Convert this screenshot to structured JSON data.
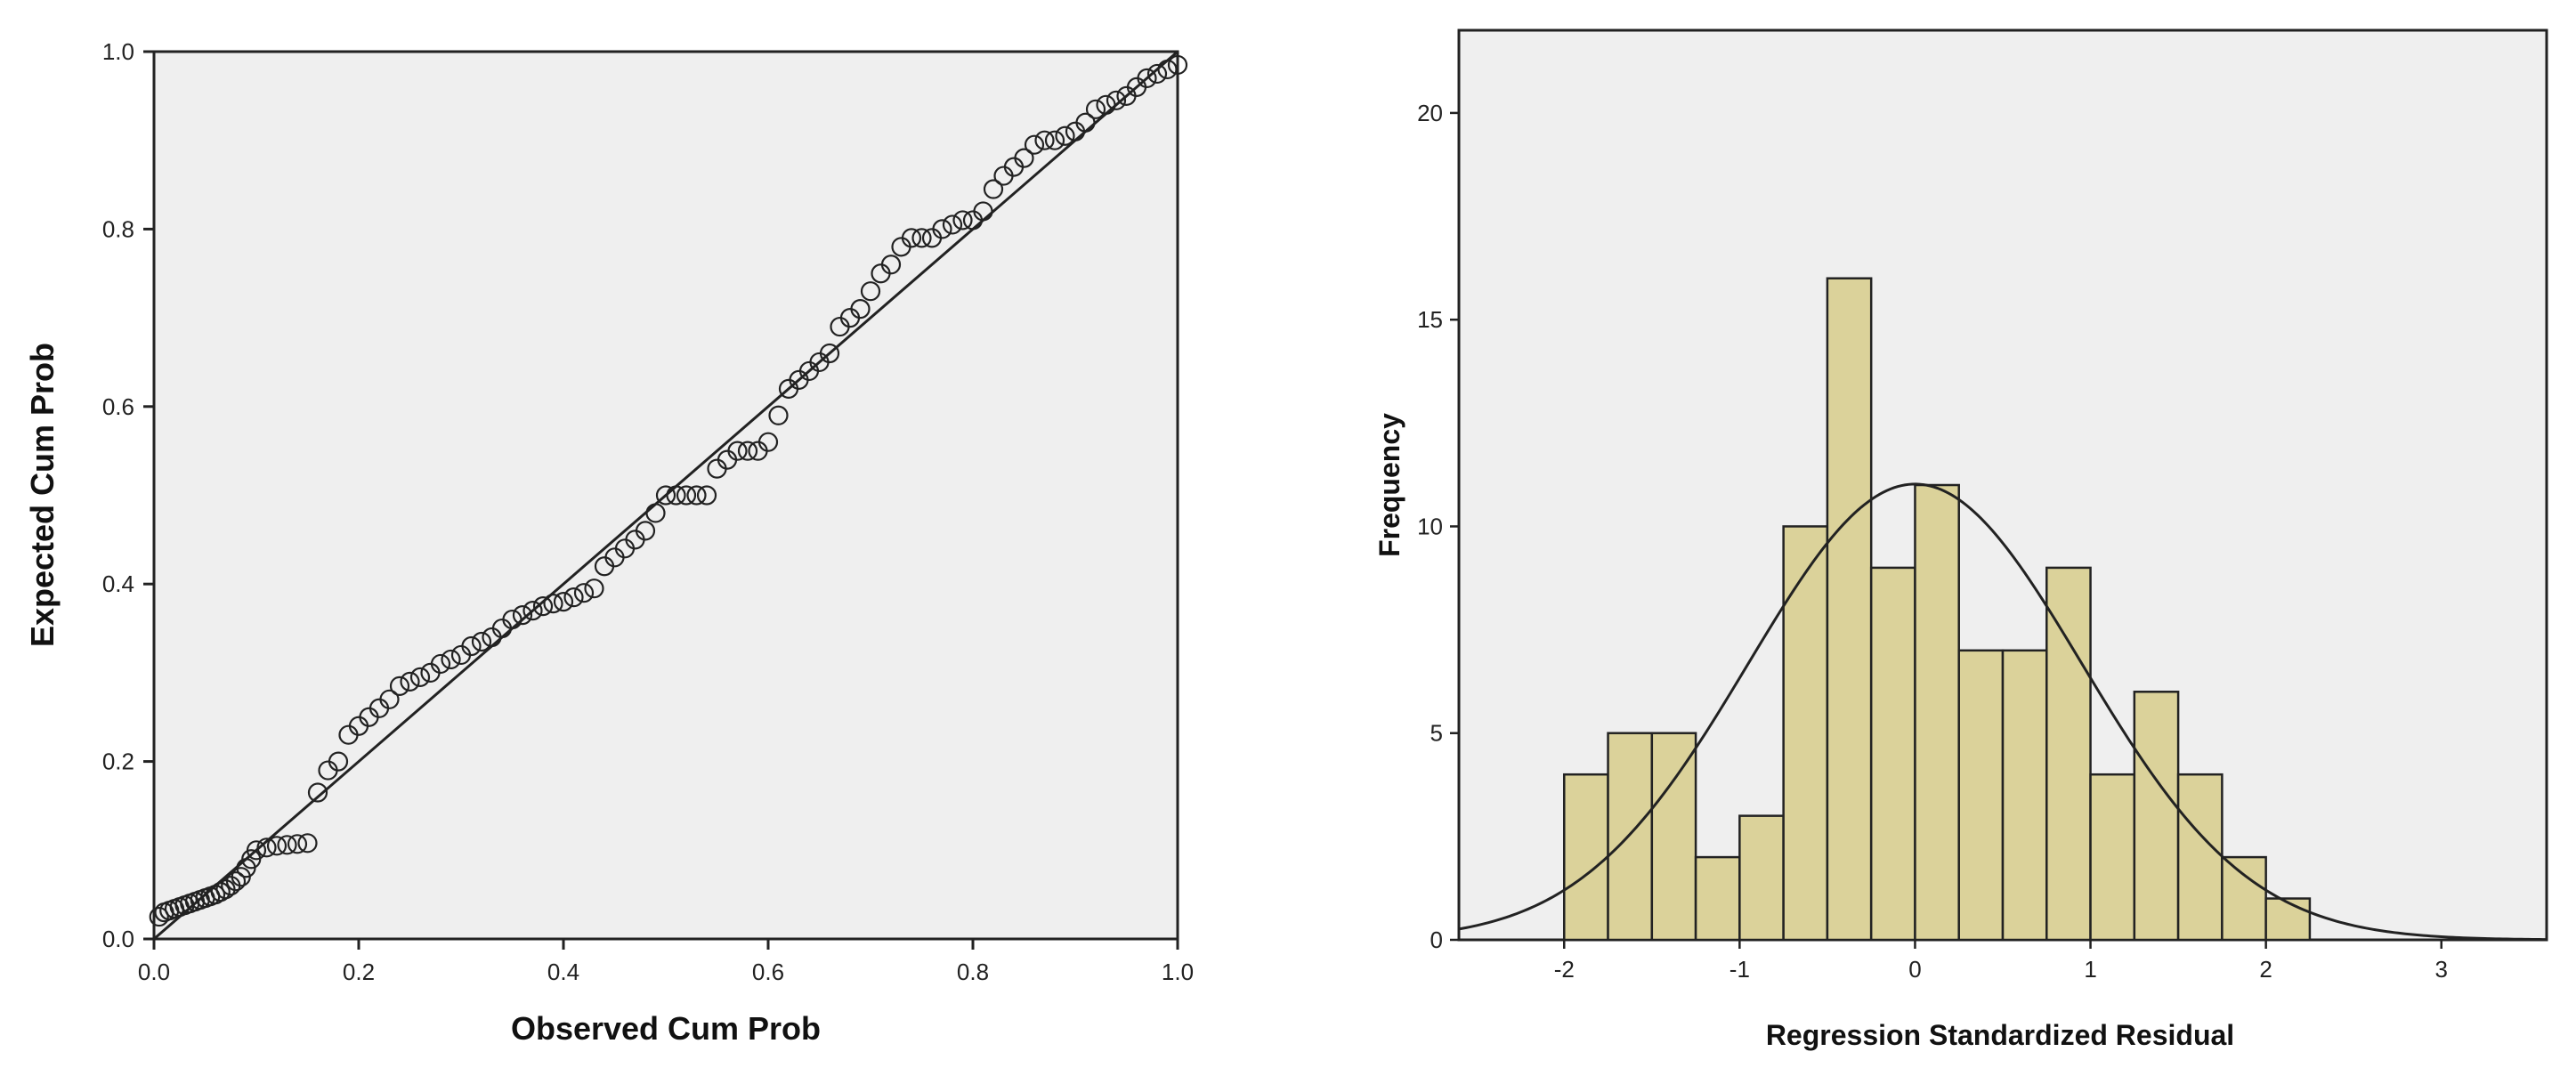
{
  "chart_data": [
    {
      "type": "scatter",
      "title": "",
      "xlabel": "Observed Cum Prob",
      "ylabel": "Expected Cum Prob",
      "xlim": [
        0,
        1
      ],
      "ylim": [
        0,
        1
      ],
      "x_ticks": [
        "0.0",
        "0.2",
        "0.4",
        "0.6",
        "0.8",
        "1.0"
      ],
      "y_ticks": [
        "0.0",
        "0.2",
        "0.4",
        "0.6",
        "0.8",
        "1.0"
      ],
      "reference_line": [
        [
          0,
          0
        ],
        [
          1,
          1
        ]
      ],
      "grid": false,
      "plot_background": "#efefef",
      "points": {
        "x": [
          0.005,
          0.01,
          0.015,
          0.02,
          0.025,
          0.03,
          0.035,
          0.04,
          0.045,
          0.05,
          0.055,
          0.06,
          0.065,
          0.07,
          0.075,
          0.08,
          0.085,
          0.09,
          0.095,
          0.1,
          0.11,
          0.12,
          0.13,
          0.14,
          0.15,
          0.16,
          0.17,
          0.18,
          0.19,
          0.2,
          0.21,
          0.22,
          0.23,
          0.24,
          0.25,
          0.26,
          0.27,
          0.28,
          0.29,
          0.3,
          0.31,
          0.32,
          0.33,
          0.34,
          0.35,
          0.36,
          0.37,
          0.38,
          0.39,
          0.4,
          0.41,
          0.42,
          0.43,
          0.44,
          0.45,
          0.46,
          0.47,
          0.48,
          0.49,
          0.5,
          0.51,
          0.52,
          0.53,
          0.54,
          0.55,
          0.56,
          0.57,
          0.58,
          0.59,
          0.6,
          0.61,
          0.62,
          0.63,
          0.64,
          0.65,
          0.66,
          0.67,
          0.68,
          0.69,
          0.7,
          0.71,
          0.72,
          0.73,
          0.74,
          0.75,
          0.76,
          0.77,
          0.78,
          0.79,
          0.8,
          0.81,
          0.82,
          0.83,
          0.84,
          0.85,
          0.86,
          0.87,
          0.88,
          0.89,
          0.9,
          0.91,
          0.92,
          0.93,
          0.94,
          0.95,
          0.96,
          0.97,
          0.98,
          0.99,
          1.0
        ],
        "y": [
          0.025,
          0.03,
          0.032,
          0.034,
          0.036,
          0.038,
          0.04,
          0.042,
          0.044,
          0.046,
          0.048,
          0.05,
          0.053,
          0.056,
          0.06,
          0.065,
          0.07,
          0.08,
          0.09,
          0.1,
          0.103,
          0.105,
          0.106,
          0.107,
          0.108,
          0.165,
          0.19,
          0.2,
          0.23,
          0.24,
          0.25,
          0.26,
          0.27,
          0.285,
          0.29,
          0.295,
          0.3,
          0.31,
          0.315,
          0.32,
          0.33,
          0.335,
          0.34,
          0.35,
          0.36,
          0.365,
          0.37,
          0.375,
          0.378,
          0.38,
          0.385,
          0.39,
          0.395,
          0.42,
          0.43,
          0.44,
          0.45,
          0.46,
          0.48,
          0.5,
          0.5,
          0.5,
          0.5,
          0.5,
          0.53,
          0.54,
          0.55,
          0.55,
          0.55,
          0.56,
          0.59,
          0.62,
          0.63,
          0.64,
          0.65,
          0.66,
          0.69,
          0.7,
          0.71,
          0.73,
          0.75,
          0.76,
          0.78,
          0.79,
          0.79,
          0.79,
          0.8,
          0.805,
          0.81,
          0.81,
          0.82,
          0.845,
          0.86,
          0.87,
          0.88,
          0.895,
          0.9,
          0.9,
          0.905,
          0.91,
          0.92,
          0.935,
          0.94,
          0.945,
          0.95,
          0.96,
          0.97,
          0.975,
          0.98,
          0.985
        ]
      }
    },
    {
      "type": "bar",
      "title": "",
      "xlabel": "Regression Standardized Residual",
      "ylabel": "Frequency",
      "xlim": [
        -2.6,
        3.6
      ],
      "ylim": [
        0,
        22
      ],
      "x_ticks": [
        "-2",
        "-1",
        "0",
        "1",
        "2",
        "3"
      ],
      "y_ticks": [
        "0",
        "5",
        "10",
        "15",
        "20"
      ],
      "bin_width": 0.25,
      "bin_starts": [
        -2.0,
        -1.75,
        -1.5,
        -1.25,
        -1.0,
        -0.75,
        -0.5,
        -0.25,
        0.0,
        0.25,
        0.5,
        0.75,
        1.0,
        1.25,
        1.5,
        1.75,
        2.0
      ],
      "values": [
        4,
        5,
        5,
        2,
        3,
        10,
        16,
        9,
        11,
        7,
        7,
        9,
        4,
        6,
        4,
        2,
        1
      ],
      "bar_color": "#dbd29a",
      "plot_background": "#efefef",
      "normal_curve": {
        "mean": 0.0,
        "sd": 0.95,
        "n": 105
      }
    }
  ]
}
